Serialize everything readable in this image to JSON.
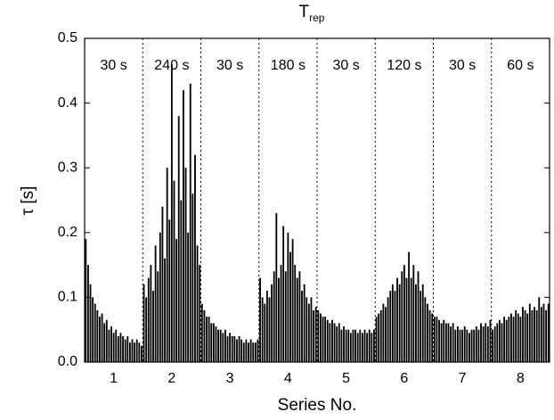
{
  "chart_data": {
    "type": "bar",
    "title": "T",
    "title_subscript": "rep",
    "xlabel": "Series No.",
    "ylabel": "τ [s]",
    "color": "#000000",
    "xlim": [
      0.5,
      8.5
    ],
    "xticks": [
      1,
      2,
      3,
      4,
      5,
      6,
      7,
      8
    ],
    "ylim": [
      0,
      0.5
    ],
    "yticks": [
      {
        "value": 0,
        "label": "0.0"
      },
      0.1,
      0.2,
      0.3,
      0.4,
      0.5
    ],
    "series": [
      {
        "name": "30 s",
        "values": [
          0.19,
          0.15,
          0.12,
          0.1,
          0.09,
          0.08,
          0.07,
          0.075,
          0.06,
          0.065,
          0.05,
          0.055,
          0.045,
          0.05,
          0.04,
          0.045,
          0.04,
          0.035,
          0.04,
          0.03,
          0.035,
          0.03,
          0.035,
          0.03,
          0.025
        ]
      },
      {
        "name": "240 s",
        "values": [
          0.12,
          0.1,
          0.13,
          0.15,
          0.11,
          0.18,
          0.14,
          0.2,
          0.24,
          0.16,
          0.3,
          0.22,
          0.46,
          0.28,
          0.19,
          0.38,
          0.25,
          0.42,
          0.3,
          0.2,
          0.43,
          0.26,
          0.32,
          0.18,
          0.15
        ]
      },
      {
        "name": "30 s",
        "values": [
          0.09,
          0.08,
          0.07,
          0.07,
          0.06,
          0.06,
          0.055,
          0.05,
          0.05,
          0.045,
          0.05,
          0.04,
          0.045,
          0.04,
          0.04,
          0.035,
          0.04,
          0.035,
          0.03,
          0.035,
          0.03,
          0.035,
          0.03,
          0.03,
          0.035
        ]
      },
      {
        "name": "180 s",
        "values": [
          0.13,
          0.1,
          0.09,
          0.11,
          0.1,
          0.12,
          0.14,
          0.23,
          0.13,
          0.15,
          0.21,
          0.14,
          0.2,
          0.17,
          0.19,
          0.15,
          0.13,
          0.14,
          0.11,
          0.12,
          0.1,
          0.09,
          0.1,
          0.08,
          0.085
        ]
      },
      {
        "name": "30 s",
        "values": [
          0.08,
          0.075,
          0.07,
          0.07,
          0.065,
          0.06,
          0.065,
          0.06,
          0.055,
          0.06,
          0.05,
          0.055,
          0.05,
          0.05,
          0.045,
          0.05,
          0.05,
          0.045,
          0.05,
          0.045,
          0.05,
          0.045,
          0.05,
          0.045,
          0.05
        ]
      },
      {
        "name": "120 s",
        "values": [
          0.07,
          0.075,
          0.08,
          0.09,
          0.085,
          0.1,
          0.11,
          0.12,
          0.11,
          0.13,
          0.12,
          0.14,
          0.15,
          0.13,
          0.17,
          0.13,
          0.15,
          0.12,
          0.14,
          0.11,
          0.12,
          0.1,
          0.09,
          0.08,
          0.075
        ]
      },
      {
        "name": "30 s",
        "values": [
          0.07,
          0.07,
          0.065,
          0.06,
          0.065,
          0.06,
          0.06,
          0.055,
          0.06,
          0.05,
          0.055,
          0.05,
          0.05,
          0.055,
          0.05,
          0.045,
          0.05,
          0.05,
          0.055,
          0.05,
          0.06,
          0.055,
          0.06,
          0.055,
          0.065
        ]
      },
      {
        "name": "60 s",
        "values": [
          0.05,
          0.055,
          0.06,
          0.065,
          0.06,
          0.07,
          0.065,
          0.07,
          0.075,
          0.07,
          0.08,
          0.075,
          0.07,
          0.085,
          0.08,
          0.075,
          0.09,
          0.08,
          0.085,
          0.08,
          0.1,
          0.085,
          0.09,
          0.08,
          0.09
        ]
      }
    ]
  }
}
